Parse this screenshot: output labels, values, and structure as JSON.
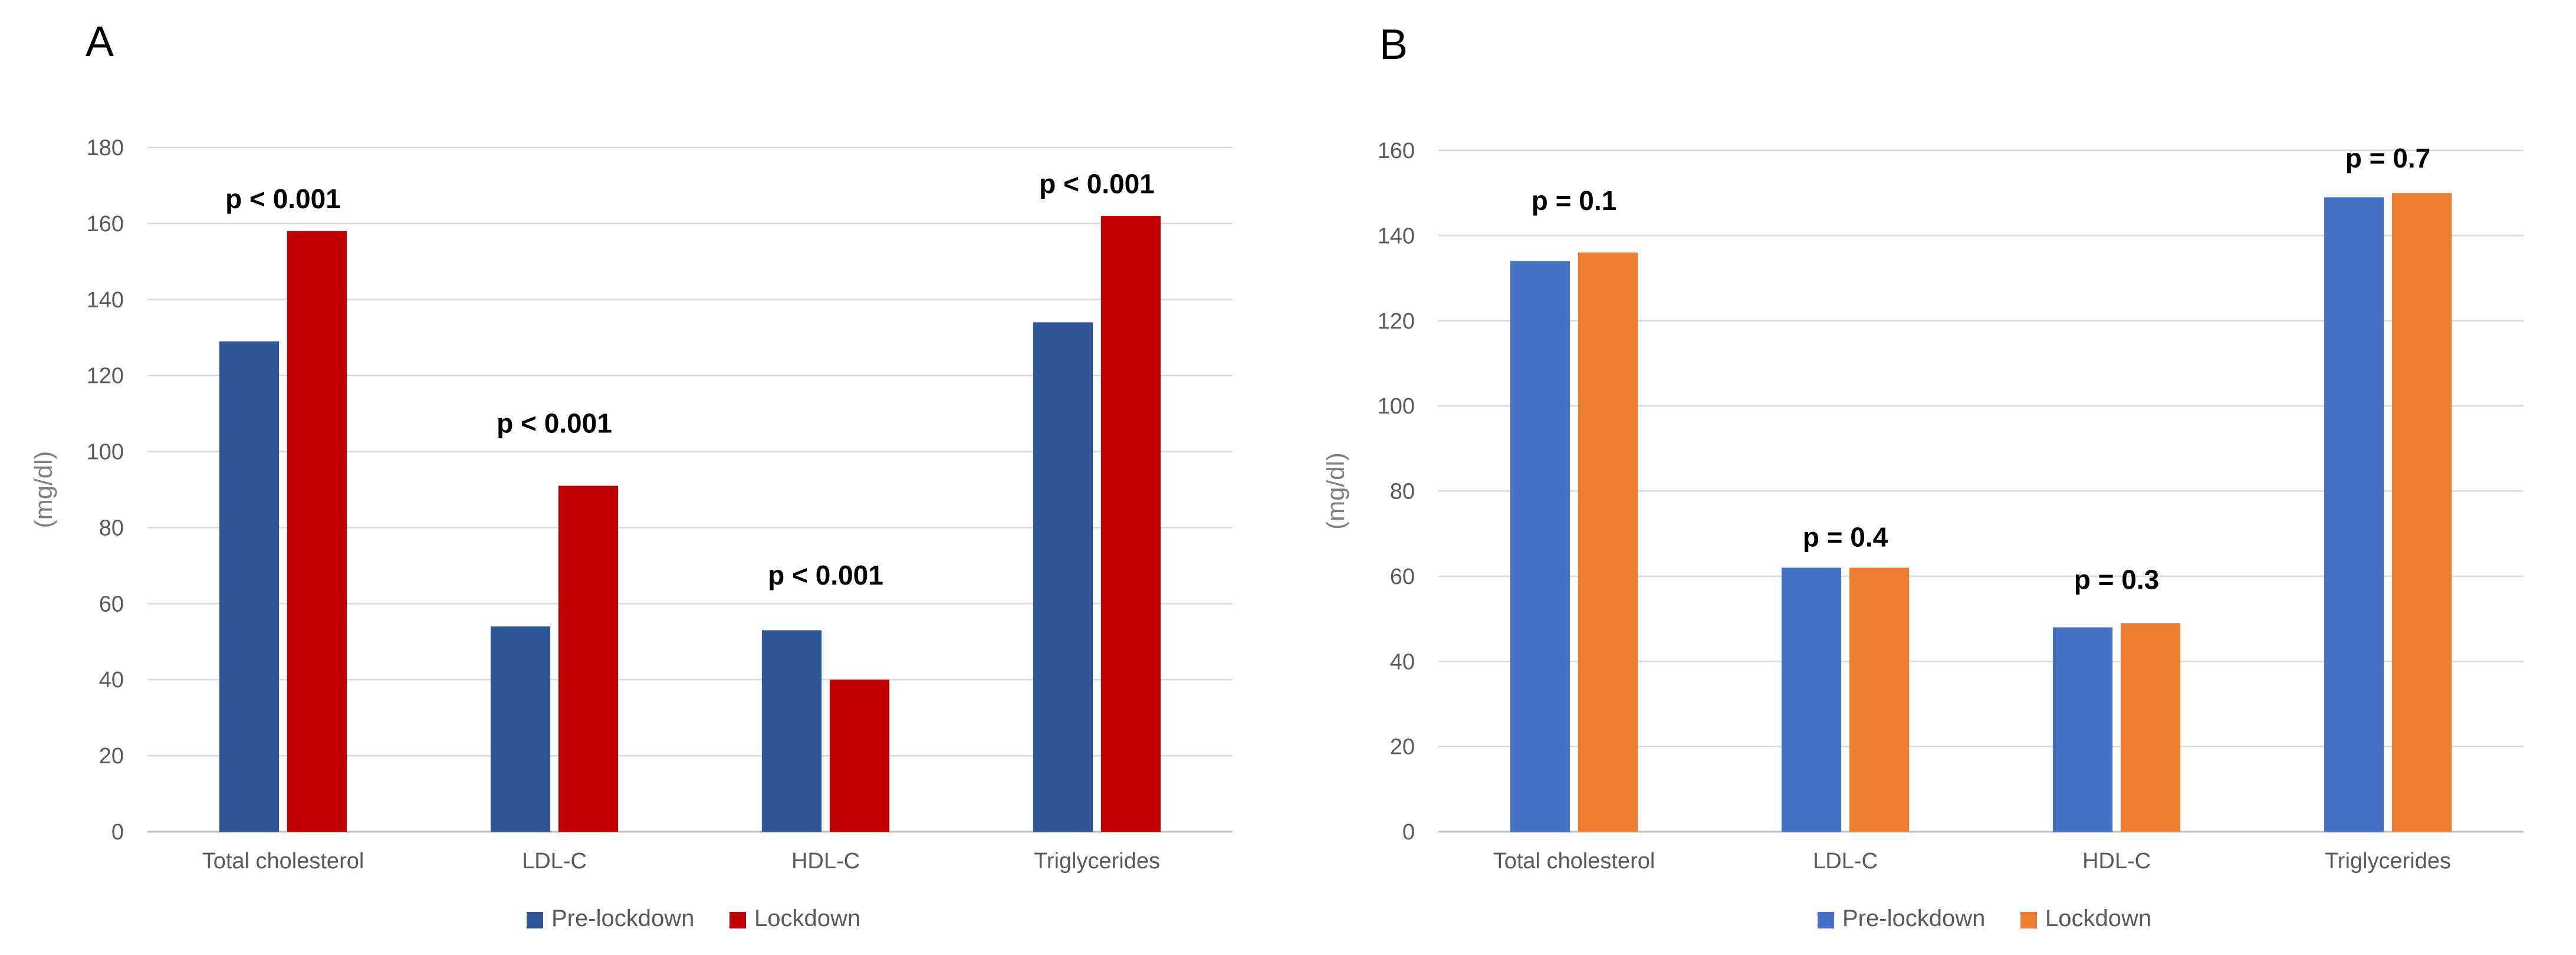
{
  "chart_data": [
    {
      "type": "bar",
      "panel_label": "A",
      "categories": [
        "Total cholesterol",
        "LDL-C",
        "HDL-C",
        "Triglycerides"
      ],
      "series": [
        {
          "name": "Pre-lockdown",
          "color": "#2f5597",
          "values": [
            129,
            54,
            53,
            134
          ]
        },
        {
          "name": "Lockdown",
          "color": "#c00000",
          "values": [
            158,
            91,
            40,
            162
          ]
        }
      ],
      "annotations": [
        "p < 0.001",
        "p < 0.001",
        "p < 0.001",
        "p < 0.001"
      ],
      "annotation_heights": [
        164,
        105,
        65,
        168
      ],
      "ylabel": "(mg/dl)",
      "xlabel": "",
      "title": "",
      "ylim": [
        0,
        180
      ],
      "yticks": [
        0,
        20,
        40,
        60,
        80,
        100,
        120,
        140,
        160,
        180
      ],
      "grid": true,
      "legend": "bottom-center"
    },
    {
      "type": "bar",
      "panel_label": "B",
      "categories": [
        "Total cholesterol",
        "LDL-C",
        "HDL-C",
        "Triglycerides"
      ],
      "series": [
        {
          "name": "Pre-lockdown",
          "color": "#4472c4",
          "values": [
            134,
            62,
            48,
            149
          ]
        },
        {
          "name": "Lockdown",
          "color": "#ed7d31",
          "values": [
            136,
            62,
            49,
            150
          ]
        }
      ],
      "annotations": [
        "p = 0.1",
        "p = 0.4",
        "p = 0.3",
        "p = 0.7"
      ],
      "annotation_heights": [
        146,
        67,
        57,
        156
      ],
      "ylabel": "(mg/dl)",
      "xlabel": "",
      "title": "",
      "ylim": [
        0,
        160
      ],
      "yticks": [
        0,
        20,
        40,
        60,
        80,
        100,
        120,
        140,
        160
      ],
      "grid": true,
      "legend": "bottom-center"
    }
  ]
}
